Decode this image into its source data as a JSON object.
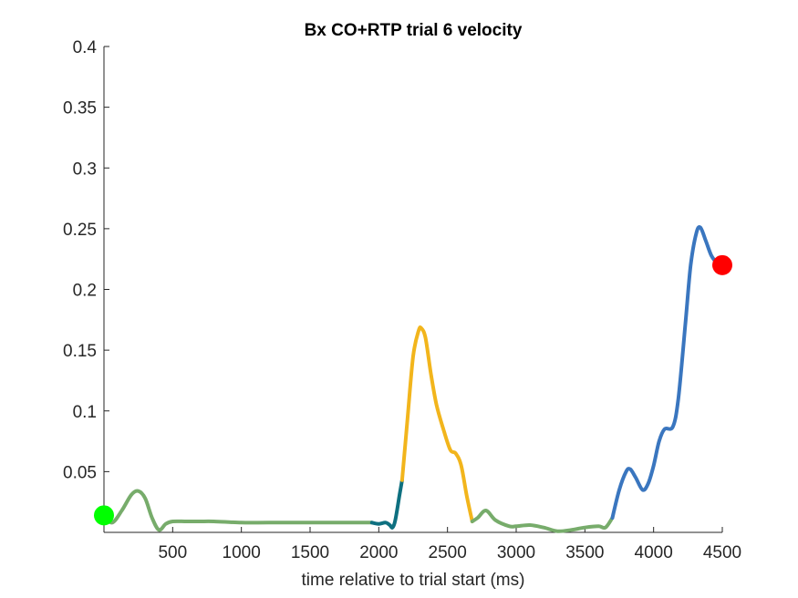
{
  "chart_data": {
    "type": "line",
    "title": "Bx  CO+RTP trial 6 velocity",
    "xlabel": "time relative to trial start (ms)",
    "ylabel": "",
    "xlim": [
      0,
      4500
    ],
    "ylim": [
      0,
      0.4
    ],
    "xticks": [
      500,
      1000,
      1500,
      2000,
      2500,
      3000,
      3500,
      4000,
      4500
    ],
    "xtick_labels": [
      "500",
      "1000",
      "1500",
      "2000",
      "2500",
      "3000",
      "3500",
      "4000",
      "4500"
    ],
    "yticks": [
      0.05,
      0.1,
      0.15,
      0.2,
      0.25,
      0.3,
      0.35,
      0.4
    ],
    "ytick_labels": [
      "0.05",
      "0.1",
      "0.15",
      "0.2",
      "0.25",
      "0.3",
      "0.35",
      "0.4"
    ],
    "grid": false,
    "series": [
      {
        "color": "#77AC6B",
        "points": [
          [
            0,
            0.014
          ],
          [
            60,
            0.008
          ],
          [
            130,
            0.018
          ],
          [
            200,
            0.031
          ],
          [
            250,
            0.034
          ],
          [
            300,
            0.028
          ],
          [
            350,
            0.012
          ],
          [
            400,
            0.002
          ],
          [
            450,
            0.007
          ],
          [
            500,
            0.009
          ],
          [
            600,
            0.009
          ],
          [
            700,
            0.009
          ],
          [
            800,
            0.009
          ],
          [
            1000,
            0.008
          ],
          [
            1200,
            0.008
          ],
          [
            1500,
            0.008
          ],
          [
            1800,
            0.008
          ],
          [
            1950,
            0.008
          ]
        ]
      },
      {
        "color": "#0E7080",
        "points": [
          [
            1950,
            0.008
          ],
          [
            2000,
            0.007
          ],
          [
            2050,
            0.008
          ],
          [
            2080,
            0.006
          ],
          [
            2100,
            0.004
          ],
          [
            2120,
            0.01
          ],
          [
            2150,
            0.03
          ],
          [
            2170,
            0.043
          ]
        ]
      },
      {
        "color": "#F2B51C",
        "points": [
          [
            2170,
            0.043
          ],
          [
            2210,
            0.095
          ],
          [
            2250,
            0.145
          ],
          [
            2290,
            0.166
          ],
          [
            2310,
            0.168
          ],
          [
            2340,
            0.16
          ],
          [
            2380,
            0.13
          ],
          [
            2420,
            0.105
          ],
          [
            2470,
            0.085
          ],
          [
            2520,
            0.068
          ],
          [
            2560,
            0.065
          ],
          [
            2600,
            0.055
          ],
          [
            2640,
            0.03
          ],
          [
            2680,
            0.009
          ]
        ]
      },
      {
        "color": "#77AC6B",
        "points": [
          [
            2680,
            0.009
          ],
          [
            2720,
            0.012
          ],
          [
            2780,
            0.018
          ],
          [
            2850,
            0.01
          ],
          [
            2950,
            0.005
          ],
          [
            3000,
            0.005
          ],
          [
            3100,
            0.006
          ],
          [
            3200,
            0.004
          ],
          [
            3300,
            0.001
          ],
          [
            3400,
            0.002
          ],
          [
            3500,
            0.004
          ],
          [
            3600,
            0.005
          ],
          [
            3650,
            0.004
          ],
          [
            3700,
            0.012
          ]
        ]
      },
      {
        "color": "#3A76BF",
        "points": [
          [
            3700,
            0.012
          ],
          [
            3750,
            0.035
          ],
          [
            3800,
            0.05
          ],
          [
            3830,
            0.052
          ],
          [
            3870,
            0.045
          ],
          [
            3920,
            0.035
          ],
          [
            3960,
            0.04
          ],
          [
            4000,
            0.055
          ],
          [
            4040,
            0.075
          ],
          [
            4080,
            0.085
          ],
          [
            4140,
            0.087
          ],
          [
            4180,
            0.11
          ],
          [
            4230,
            0.17
          ],
          [
            4270,
            0.22
          ],
          [
            4310,
            0.246
          ],
          [
            4340,
            0.251
          ],
          [
            4380,
            0.24
          ],
          [
            4420,
            0.228
          ],
          [
            4460,
            0.222
          ],
          [
            4500,
            0.22
          ]
        ]
      }
    ],
    "markers": [
      {
        "x": 0,
        "y": 0.014,
        "color": "#00FF00"
      },
      {
        "x": 4500,
        "y": 0.22,
        "color": "#FF0000"
      }
    ]
  }
}
